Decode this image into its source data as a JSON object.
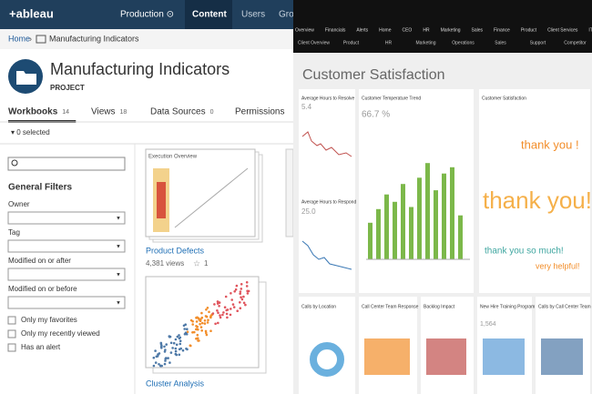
{
  "left": {
    "logo": "+ableau",
    "nav": [
      "Production ⊙",
      "Content",
      "Users",
      "Grou"
    ],
    "breadcrumb": [
      "Home",
      "Manufacturing Indicators"
    ],
    "title": "Manufacturing Indicators",
    "subtitle": "PROJECT",
    "tabs": [
      {
        "label": "Workbooks",
        "count": "14"
      },
      {
        "label": "Views",
        "count": "18"
      },
      {
        "label": "Data Sources",
        "count": "0"
      },
      {
        "label": "Permissions",
        "count": ""
      }
    ],
    "selected": "▾ 0 selected",
    "filters_title": "General Filters",
    "filters": [
      "Owner",
      "Tag",
      "Modified on or after",
      "Modified on or before"
    ],
    "checkboxes": [
      "Only my favorites",
      "Only my recently viewed",
      "Has an alert"
    ],
    "workbooks": [
      {
        "name": "Product Defects",
        "thumb_title": "Execution Overview",
        "views": "4,381 views",
        "stars": "1"
      },
      {
        "name": "Cluster Analysis"
      }
    ]
  },
  "right": {
    "nav": [
      "Overview",
      "Financials",
      "Alerts",
      "Home",
      "CEO",
      "HR",
      "Marketing",
      "Sales",
      "Finance",
      "Product",
      "Client Services",
      "IT"
    ],
    "subnav": [
      "Client Overview",
      "Product",
      "HR",
      "Marketing",
      "Operations",
      "Sales",
      "Support",
      "Competitor"
    ],
    "title": "Customer Satisfaction",
    "cards": [
      {
        "title": "Average Hours to Resolve",
        "value": "5.4"
      },
      {
        "title": "Customer Temperature Trend",
        "value": "66.7 %"
      },
      {
        "title": "Customer Satisfaction"
      },
      {
        "title": "Average Hours to Respond",
        "value": "25.0"
      }
    ],
    "temperature_trend": {
      "values": [
        35,
        48,
        62,
        55,
        72,
        50,
        78,
        92,
        66,
        82,
        88,
        42
      ]
    },
    "thanks": [
      "thank you !",
      "thank you!",
      "thank you so much!",
      "very helpful!"
    ],
    "bottom_cards": [
      {
        "title": "Calls by Location"
      },
      {
        "title": "Call Center Team Response"
      },
      {
        "title": "Backlog Impact"
      },
      {
        "title": "New Hire Training Program",
        "value": "1,564"
      },
      {
        "title": "Calls by Call Center Team"
      }
    ]
  }
}
